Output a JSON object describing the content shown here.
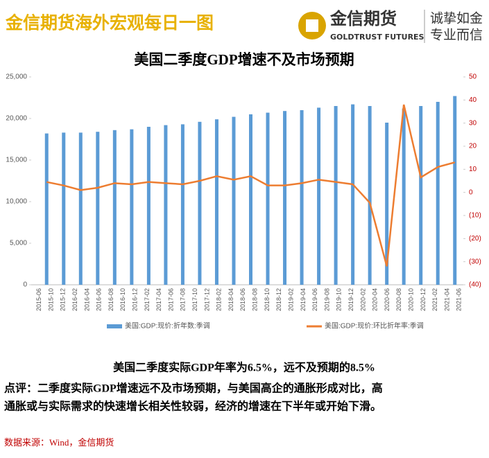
{
  "header": {
    "title": "金信期货海外宏观每日一图",
    "brand": "金信期货",
    "brand_en": "GOLDTRUST FUTURES",
    "slogan_1": "诚挚如金",
    "slogan_2": "专业而信"
  },
  "chart_data": {
    "type": "bar-line",
    "title": "美国二季度GDP增速不及市场预期",
    "xticks": [
      "2015-06",
      "2015-10",
      "2015-12",
      "2016-02",
      "2016-04",
      "2016-06",
      "2016-08",
      "2016-10",
      "2016-12",
      "2017-02",
      "2017-04",
      "2017-06",
      "2017-08",
      "2017-10",
      "2017-12",
      "2018-02",
      "2018-04",
      "2018-06",
      "2018-08",
      "2018-10",
      "2018-12",
      "2019-02",
      "2019-04",
      "2019-06",
      "2019-08",
      "2019-10",
      "2019-12",
      "2020-02",
      "2020-04",
      "2020-06",
      "2020-08",
      "2020-10",
      "2020-12",
      "2021-02",
      "2021-04",
      "2021-06"
    ],
    "series": [
      {
        "name": "美国:GDP:现价:折年数:季调",
        "color": "#5b9bd5",
        "values": [
          18200,
          18300,
          18300,
          18400,
          18600,
          18700,
          19000,
          19200,
          19300,
          19600,
          19900,
          20200,
          20500,
          20700,
          20900,
          21000,
          21300,
          21500,
          21700,
          21500,
          19500,
          21200,
          21500,
          22000,
          22700
        ]
      },
      {
        "name": "美国:GDP:现价:环比折年率:季调",
        "color": "#ed7d31",
        "axis": "y2",
        "values": [
          4.5,
          3,
          1,
          2,
          4,
          3.5,
          4.5,
          4,
          3.5,
          5,
          7,
          5.5,
          7,
          3,
          3,
          4,
          5.5,
          4.5,
          3.5,
          -4.5,
          -32,
          38,
          6.5,
          11,
          13
        ]
      }
    ],
    "ylim": [
      0,
      25000
    ],
    "yticks": [
      0,
      {
        "value": 5000,
        "label": "5,000"
      },
      {
        "value": 10000,
        "label": "10,000"
      },
      {
        "value": 15000,
        "label": "15,000"
      },
      {
        "value": 20000,
        "label": "20,000"
      },
      {
        "value": 25000,
        "label": "25,000"
      }
    ],
    "y2lim": [
      -40,
      50
    ],
    "y2ticks": [
      {
        "value": -40,
        "label": "(40)"
      },
      {
        "value": -30,
        "label": "(30)"
      },
      {
        "value": -20,
        "label": "(20)"
      },
      {
        "value": -10,
        "label": "(10)"
      },
      0,
      10,
      20,
      30,
      40,
      50
    ],
    "y2color": "#c00000",
    "legend": "bottom"
  },
  "notes": {
    "summary": "美国二季度实际GDP年率为6.5%，远不及预期的8.5%",
    "comment_1": "点评：二季度实际GDP增速远不及市场预期，与美国高企的通胀形成对比，高",
    "comment_2": "通胀或与实际需求的快速增长相关性较弱，经济的增速在下半年或开始下滑。",
    "source": "数据来源：Wind，金信期货"
  }
}
